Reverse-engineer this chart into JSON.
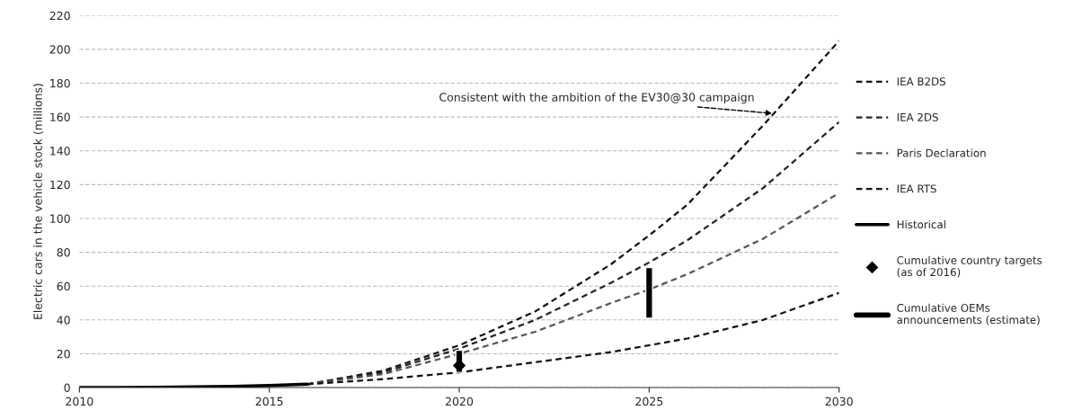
{
  "chart_data": {
    "type": "line",
    "ylabel": "Electric cars in the vehicle stock (millions)",
    "xlim": [
      2010,
      2030
    ],
    "xticks": [
      2010,
      2015,
      2020,
      2025,
      2030
    ],
    "ylim": [
      0,
      220
    ],
    "yticks": [
      0,
      20,
      40,
      60,
      80,
      100,
      120,
      140,
      160,
      180,
      200,
      220
    ],
    "grid": "y",
    "legend": "right",
    "series": [
      {
        "name": "IEA B2DS",
        "color": "#111111",
        "line_style": "dashed",
        "x": [
          2016,
          2018,
          2020,
          2022,
          2024,
          2025,
          2026,
          2028,
          2030
        ],
        "values": [
          2,
          10,
          25,
          45,
          73,
          90,
          108,
          155,
          205
        ]
      },
      {
        "name": "IEA 2DS",
        "color": "#222222",
        "line_style": "dashed",
        "x": [
          2016,
          2018,
          2020,
          2022,
          2024,
          2025,
          2026,
          2028,
          2030
        ],
        "values": [
          2,
          9,
          23,
          40,
          62,
          74,
          87,
          118,
          157
        ]
      },
      {
        "name": "Paris Declaration",
        "color": "#555555",
        "line_style": "dashed",
        "x": [
          2016,
          2018,
          2020,
          2022,
          2024,
          2025,
          2026,
          2028,
          2030
        ],
        "values": [
          2,
          8,
          20,
          33,
          50,
          58,
          67,
          88,
          115
        ]
      },
      {
        "name": "IEA RTS",
        "color": "#111111",
        "line_style": "dashed",
        "x": [
          2016,
          2018,
          2020,
          2022,
          2024,
          2025,
          2026,
          2028,
          2030
        ],
        "values": [
          2,
          5,
          9,
          15,
          21,
          25,
          29,
          40,
          56
        ]
      },
      {
        "name": "Historical",
        "color": "#000000",
        "line_style": "solid",
        "x": [
          2010,
          2011,
          2012,
          2013,
          2014,
          2015,
          2016
        ],
        "values": [
          0,
          0.1,
          0.2,
          0.4,
          0.7,
          1.2,
          2
        ]
      },
      {
        "name": "Cumulative country targets\n(as of 2016)",
        "type": "scatter",
        "marker": "diamond",
        "color": "#000000",
        "x": [
          2020
        ],
        "values": [
          13
        ]
      },
      {
        "name": "Cumulative OEMs\nannouncements (estimate)",
        "type": "bar",
        "color": "#000000",
        "x": [
          2020,
          2025
        ],
        "base": [
          9,
          41
        ],
        "values": [
          13,
          30
        ]
      }
    ],
    "annotations": [
      {
        "text": "Consistent with the ambition of the EV30@30 campaign",
        "x": 2028.3,
        "y": 162
      }
    ]
  }
}
